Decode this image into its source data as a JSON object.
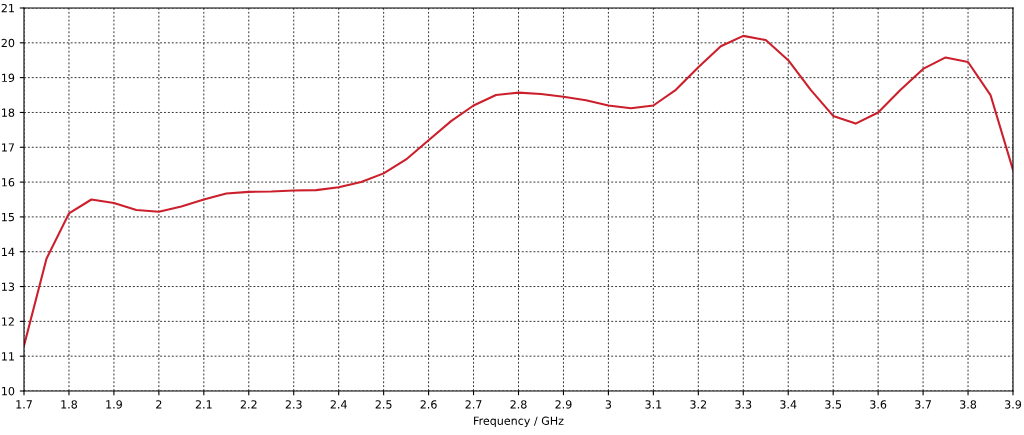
{
  "chart_data": {
    "type": "line",
    "xlabel": "Frequency / GHz",
    "x": [
      1.7,
      1.75,
      1.8,
      1.85,
      1.9,
      1.95,
      2.0,
      2.05,
      2.1,
      2.15,
      2.2,
      2.25,
      2.3,
      2.35,
      2.4,
      2.45,
      2.5,
      2.55,
      2.6,
      2.65,
      2.7,
      2.75,
      2.8,
      2.85,
      2.9,
      2.95,
      3.0,
      3.05,
      3.1,
      3.15,
      3.2,
      3.25,
      3.3,
      3.35,
      3.4,
      3.45,
      3.5,
      3.55,
      3.6,
      3.65,
      3.7,
      3.75,
      3.8,
      3.85,
      3.9
    ],
    "series": [
      {
        "color": "#cc1f2c",
        "values": [
          11.3,
          13.8,
          15.1,
          15.5,
          15.4,
          15.2,
          15.15,
          15.3,
          15.5,
          15.67,
          15.72,
          15.73,
          15.76,
          15.77,
          15.85,
          16.0,
          16.25,
          16.65,
          17.2,
          17.75,
          18.2,
          18.5,
          18.57,
          18.53,
          18.45,
          18.35,
          18.2,
          18.12,
          18.2,
          18.65,
          19.3,
          19.9,
          20.2,
          20.08,
          19.5,
          18.65,
          17.9,
          17.68,
          18.0,
          18.65,
          19.25,
          19.58,
          19.45,
          18.5,
          16.35
        ]
      }
    ],
    "xlim": [
      1.7,
      3.9
    ],
    "ylim": [
      10,
      21
    ],
    "xticks": [
      1.7,
      1.8,
      1.9,
      2,
      2.1,
      2.2,
      2.3,
      2.4,
      2.5,
      2.6,
      2.7,
      2.8,
      2.9,
      3,
      3.1,
      3.2,
      3.3,
      3.4,
      3.5,
      3.6,
      3.7,
      3.8,
      3.9
    ],
    "yticks": [
      10,
      11,
      12,
      13,
      14,
      15,
      16,
      17,
      18,
      19,
      20,
      21
    ],
    "grid": true,
    "line_style": "solid",
    "marker": "none",
    "legend": false
  }
}
